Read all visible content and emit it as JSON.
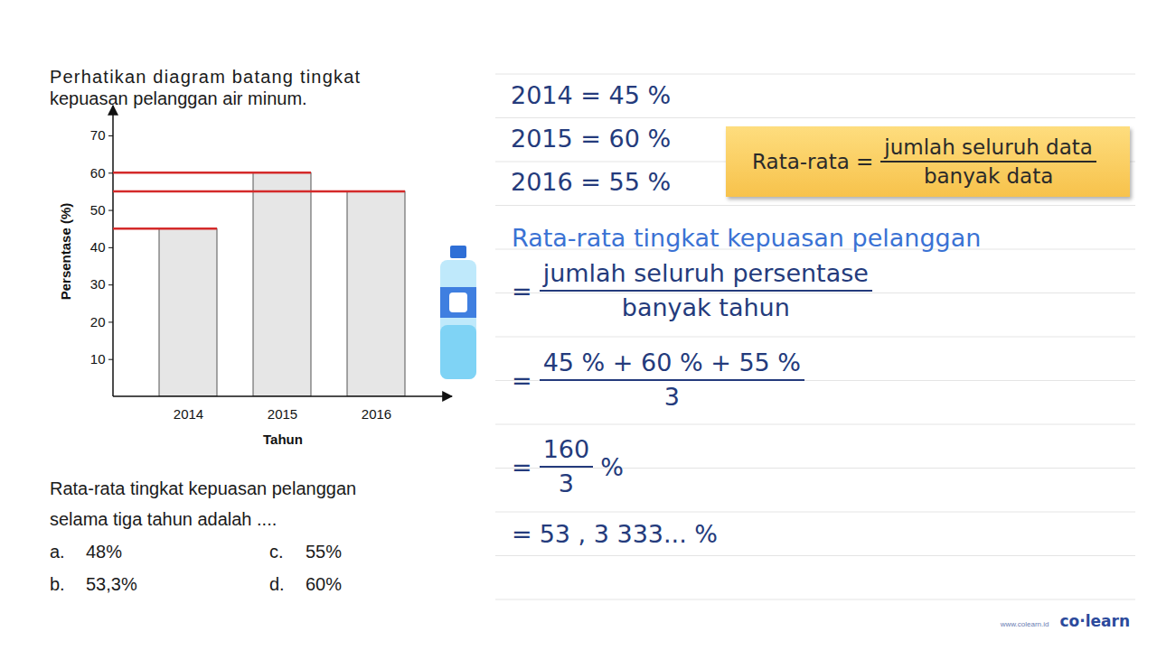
{
  "question": {
    "intro_lines": [
      "Perhatikan diagram batang tingkat",
      "kepuasan pelanggan air minum."
    ],
    "prompt_lines": [
      "Rata-rata tingkat kepuasan pelanggan",
      "selama tiga tahun adalah ...."
    ],
    "options": [
      {
        "letter": "a.",
        "text": "48%"
      },
      {
        "letter": "b.",
        "text": "53,3%"
      },
      {
        "letter": "c.",
        "text": "55%"
      },
      {
        "letter": "d.",
        "text": "60%"
      }
    ]
  },
  "chart_data": {
    "type": "bar",
    "categories": [
      "2014",
      "2015",
      "2016"
    ],
    "values": [
      45,
      60,
      55
    ],
    "color": "#e6e6e6",
    "x_label": "Tahun",
    "y_label": "Persentase (%)",
    "ylim": [
      0,
      78
    ],
    "yticks": [
      10,
      20,
      30,
      40,
      50,
      60,
      70
    ],
    "grid": false
  },
  "solution": {
    "given": [
      "2014 = 45 %",
      "2015 = 60 %",
      "2016 = 55 %"
    ],
    "formula_box": {
      "lhs": "Rata-rata =",
      "numerator": "jumlah seluruh data",
      "denominator": "banyak data"
    },
    "heading": "Rata-rata tingkat kepuasan pelanggan",
    "steps": [
      {
        "prefix": "=",
        "numerator": "jumlah seluruh persentase",
        "denominator": "banyak tahun"
      },
      {
        "prefix": "=",
        "numerator": "45 % + 60 % + 55 %",
        "denominator": "3"
      },
      {
        "prefix": "=",
        "numerator": "160",
        "denominator": "3",
        "suffix": "%"
      },
      {
        "prefix": "=",
        "text": "53 , 3 333... %"
      }
    ]
  },
  "branding": {
    "url": "www.colearn.id",
    "logo": "co·learn"
  }
}
